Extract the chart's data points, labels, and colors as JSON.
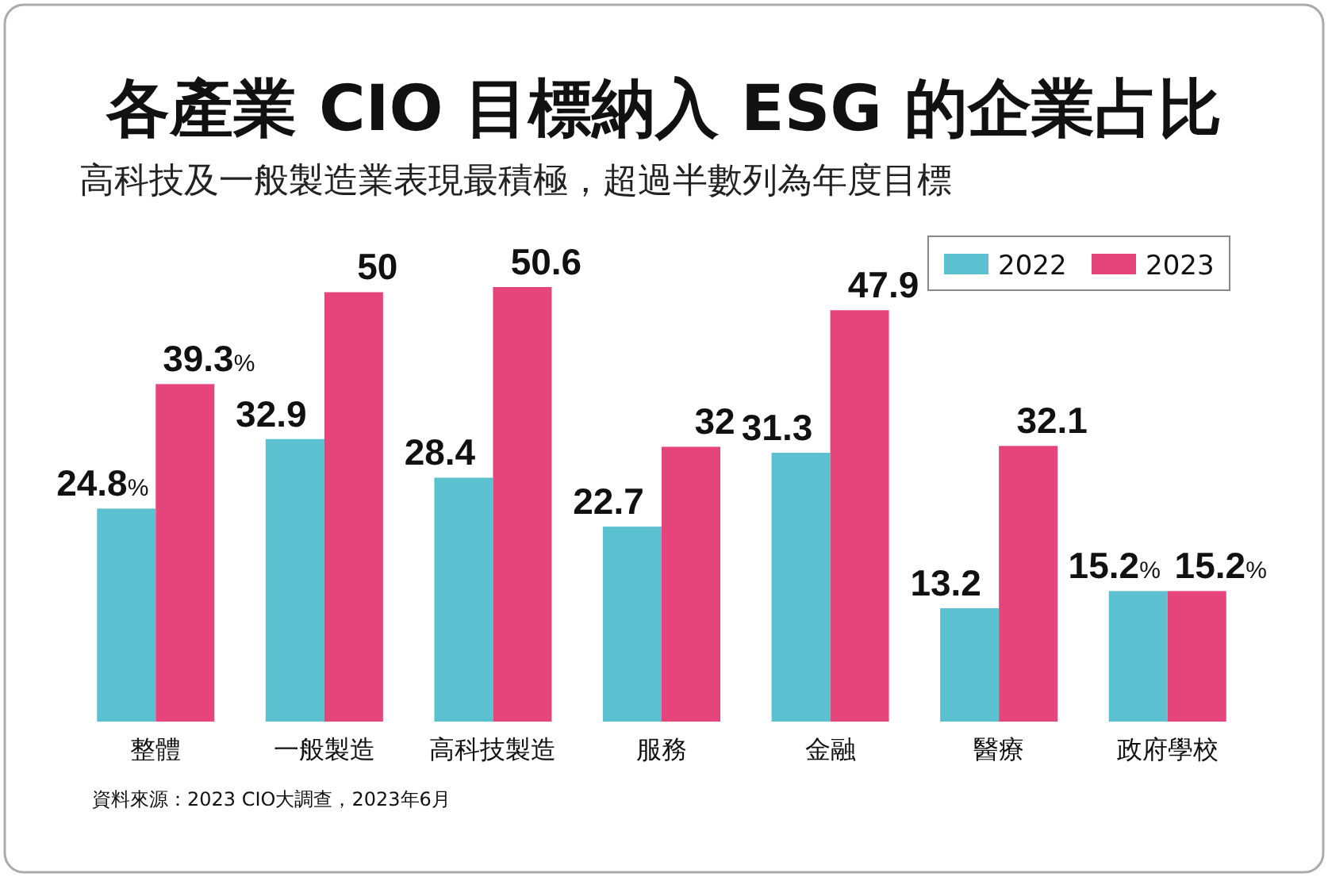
{
  "chart_data": {
    "type": "bar",
    "title": "各產業 CIO 目標納入 ESG 的企業占比",
    "subtitle": "高科技及一般製造業表現最積極，超過半數列為年度目標",
    "categories": [
      "整體",
      "一般製造",
      "高科技製造",
      "服務",
      "金融",
      "醫療",
      "政府學校"
    ],
    "series": [
      {
        "name": "2022",
        "color": "#5bc0d0",
        "values": [
          24.8,
          32.9,
          28.4,
          22.7,
          31.3,
          13.2,
          15.2
        ],
        "value_labels": [
          "24.8%",
          "32.9",
          "28.4",
          "22.7",
          "31.3",
          "13.2",
          "15.2%"
        ]
      },
      {
        "name": "2023",
        "color": "#e5457a",
        "values": [
          39.3,
          50,
          50.6,
          32,
          47.9,
          32.1,
          15.2
        ],
        "value_labels": [
          "39.3%",
          "50",
          "50.6",
          "32",
          "47.9",
          "32.1",
          "15.2%"
        ]
      }
    ],
    "legend": "top right",
    "annotations": [
      "資料來源：2023 CIO大調查，2023年6月"
    ]
  }
}
